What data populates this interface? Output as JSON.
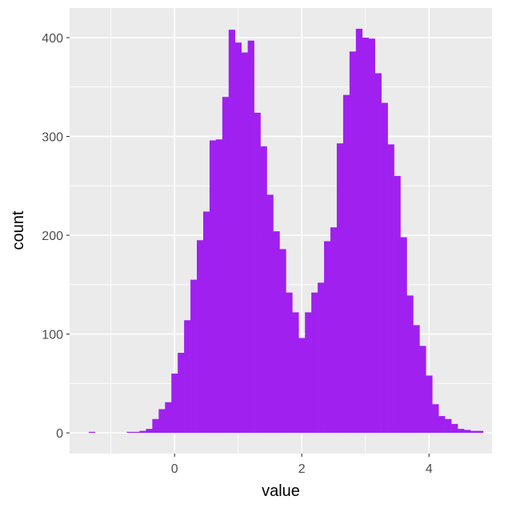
{
  "chart_data": {
    "type": "bar",
    "subtype": "histogram",
    "title": "",
    "xlabel": "value",
    "ylabel": "count",
    "binwidth": 0.1,
    "xlim": [
      -1.65,
      4.99
    ],
    "ylim": [
      -21,
      430
    ],
    "x_ticks": [
      0,
      2,
      4
    ],
    "y_ticks": [
      0,
      100,
      200,
      300,
      400
    ],
    "grid": true,
    "fill_color": "#A020F0",
    "panel_color": "#EBEBEB",
    "bins": [
      {
        "x": -1.3,
        "count": 1
      },
      {
        "x": -0.7,
        "count": 1
      },
      {
        "x": -0.6,
        "count": 1
      },
      {
        "x": -0.5,
        "count": 2
      },
      {
        "x": -0.4,
        "count": 4
      },
      {
        "x": -0.3,
        "count": 14
      },
      {
        "x": -0.2,
        "count": 24
      },
      {
        "x": -0.1,
        "count": 31
      },
      {
        "x": 0.0,
        "count": 60
      },
      {
        "x": 0.1,
        "count": 81
      },
      {
        "x": 0.2,
        "count": 114
      },
      {
        "x": 0.3,
        "count": 155
      },
      {
        "x": 0.4,
        "count": 195
      },
      {
        "x": 0.5,
        "count": 224
      },
      {
        "x": 0.6,
        "count": 296
      },
      {
        "x": 0.7,
        "count": 297
      },
      {
        "x": 0.8,
        "count": 340
      },
      {
        "x": 0.9,
        "count": 408
      },
      {
        "x": 1.0,
        "count": 395
      },
      {
        "x": 1.1,
        "count": 385
      },
      {
        "x": 1.2,
        "count": 397
      },
      {
        "x": 1.3,
        "count": 324
      },
      {
        "x": 1.4,
        "count": 290
      },
      {
        "x": 1.5,
        "count": 241
      },
      {
        "x": 1.6,
        "count": 204
      },
      {
        "x": 1.7,
        "count": 186
      },
      {
        "x": 1.8,
        "count": 142
      },
      {
        "x": 1.9,
        "count": 122
      },
      {
        "x": 2.0,
        "count": 96
      },
      {
        "x": 2.1,
        "count": 122
      },
      {
        "x": 2.2,
        "count": 142
      },
      {
        "x": 2.3,
        "count": 152
      },
      {
        "x": 2.4,
        "count": 194
      },
      {
        "x": 2.5,
        "count": 208
      },
      {
        "x": 2.6,
        "count": 293
      },
      {
        "x": 2.7,
        "count": 342
      },
      {
        "x": 2.8,
        "count": 386
      },
      {
        "x": 2.9,
        "count": 409
      },
      {
        "x": 3.0,
        "count": 400
      },
      {
        "x": 3.1,
        "count": 399
      },
      {
        "x": 3.2,
        "count": 364
      },
      {
        "x": 3.3,
        "count": 334
      },
      {
        "x": 3.4,
        "count": 292
      },
      {
        "x": 3.5,
        "count": 260
      },
      {
        "x": 3.6,
        "count": 198
      },
      {
        "x": 3.7,
        "count": 139
      },
      {
        "x": 3.8,
        "count": 109
      },
      {
        "x": 3.9,
        "count": 88
      },
      {
        "x": 4.0,
        "count": 58
      },
      {
        "x": 4.1,
        "count": 29
      },
      {
        "x": 4.2,
        "count": 17
      },
      {
        "x": 4.3,
        "count": 14
      },
      {
        "x": 4.4,
        "count": 9
      },
      {
        "x": 4.5,
        "count": 4
      },
      {
        "x": 4.6,
        "count": 3
      },
      {
        "x": 4.7,
        "count": 2
      },
      {
        "x": 4.8,
        "count": 2
      }
    ]
  }
}
